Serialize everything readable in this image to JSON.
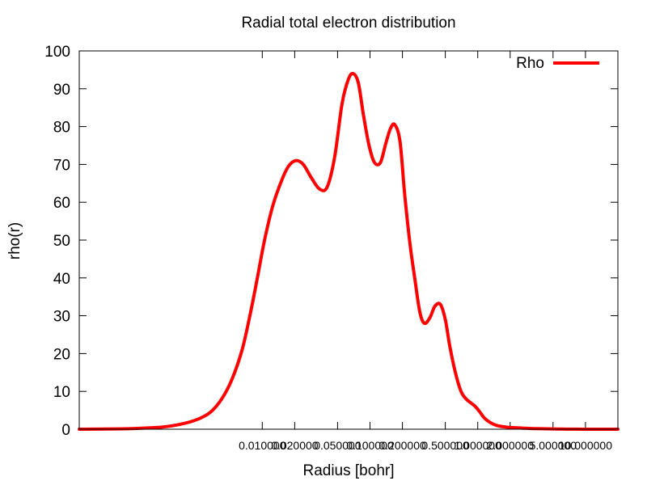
{
  "chart_data": {
    "type": "line",
    "title": "Radial total electron distribution",
    "xlabel": "Radius [bohr]",
    "ylabel": "rho(r)",
    "xscale": "log",
    "xlim": [
      0.0002,
      20
    ],
    "ylim": [
      0,
      100
    ],
    "yticks": [
      0,
      10,
      20,
      30,
      40,
      50,
      60,
      70,
      80,
      90,
      100
    ],
    "xticks": [
      {
        "value": 0.01,
        "label": "0.010000"
      },
      {
        "value": 0.02,
        "label": "0.020000"
      },
      {
        "value": 0.05,
        "label": "0.050000"
      },
      {
        "value": 0.1,
        "label": "0.100000"
      },
      {
        "value": 0.2,
        "label": "0.200000"
      },
      {
        "value": 0.5,
        "label": "0.500000"
      },
      {
        "value": 1.0,
        "label": "1.000000"
      },
      {
        "value": 2.0,
        "label": "2.000000"
      },
      {
        "value": 5.0,
        "label": "5.000000"
      },
      {
        "value": 10.0,
        "label": "10.000000"
      }
    ],
    "legend_position": "top-right",
    "grid": false,
    "series": [
      {
        "name": "Rho",
        "color": "#ff0000",
        "x": [
          0.0002,
          0.0005,
          0.0008,
          0.0012,
          0.0018,
          0.0025,
          0.0033,
          0.0042,
          0.0052,
          0.0065,
          0.0078,
          0.009,
          0.0105,
          0.0125,
          0.015,
          0.0175,
          0.0205,
          0.024,
          0.0285,
          0.034,
          0.04,
          0.047,
          0.055,
          0.063,
          0.07,
          0.078,
          0.087,
          0.098,
          0.11,
          0.125,
          0.14,
          0.155,
          0.17,
          0.19,
          0.21,
          0.235,
          0.26,
          0.29,
          0.32,
          0.36,
          0.4,
          0.45,
          0.5,
          0.55,
          0.62,
          0.7,
          0.78,
          0.86,
          0.95,
          1.05,
          1.15,
          1.3,
          1.5,
          1.8,
          2.2,
          2.6,
          3.0,
          3.6,
          4.5,
          6.0,
          8.0,
          11.0,
          15.0,
          20.0
        ],
        "y": [
          0.0,
          0.1,
          0.3,
          0.6,
          1.4,
          2.6,
          4.5,
          8.0,
          13.0,
          21.0,
          31.0,
          40.0,
          50.0,
          59.0,
          65.5,
          69.5,
          71.0,
          70.0,
          66.5,
          63.5,
          64.0,
          72.0,
          86.0,
          92.5,
          94.0,
          91.5,
          83.0,
          75.0,
          70.5,
          70.5,
          75.5,
          79.5,
          80.5,
          76.0,
          62.0,
          49.0,
          40.0,
          31.0,
          28.0,
          29.5,
          32.5,
          33.0,
          29.0,
          22.0,
          15.0,
          10.0,
          8.0,
          7.0,
          6.0,
          4.5,
          3.0,
          1.8,
          1.0,
          0.6,
          0.4,
          0.3,
          0.2,
          0.15,
          0.1,
          0.05,
          0.02,
          0.0,
          0.0,
          0.0
        ]
      }
    ]
  }
}
